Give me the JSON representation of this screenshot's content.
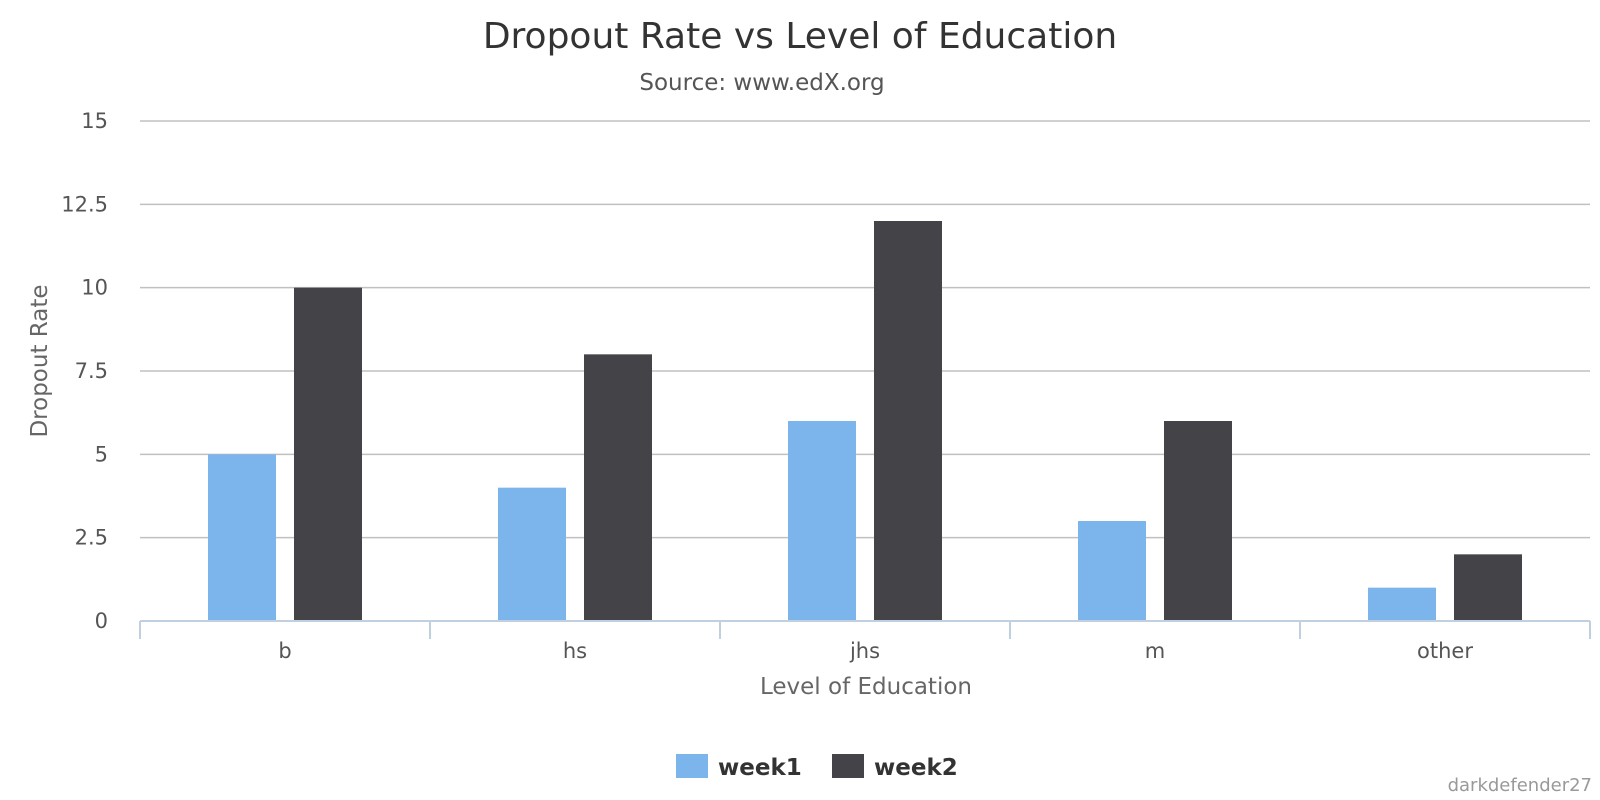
{
  "chart_data": {
    "type": "bar",
    "title": "Dropout Rate vs Level of Education",
    "subtitle": "Source: www.edX.org",
    "xlabel": "Level of Education",
    "ylabel": "Dropout Rate",
    "categories": [
      "b",
      "hs",
      "jhs",
      "m",
      "other"
    ],
    "series": [
      {
        "name": "week1",
        "color": "#7cb5ec",
        "values": [
          5,
          4,
          6,
          3,
          1
        ]
      },
      {
        "name": "week2",
        "color": "#434348",
        "values": [
          10,
          8,
          12,
          6,
          2
        ]
      }
    ],
    "ylim": [
      0,
      15
    ],
    "yticks": [
      0,
      2.5,
      5,
      7.5,
      10,
      12.5,
      15
    ],
    "ytick_labels": [
      "0",
      "2.5",
      "5",
      "7.5",
      "10",
      "12.5",
      "15"
    ],
    "grid": true,
    "legend_position": "bottom-center"
  },
  "credit": "darkdefender27"
}
